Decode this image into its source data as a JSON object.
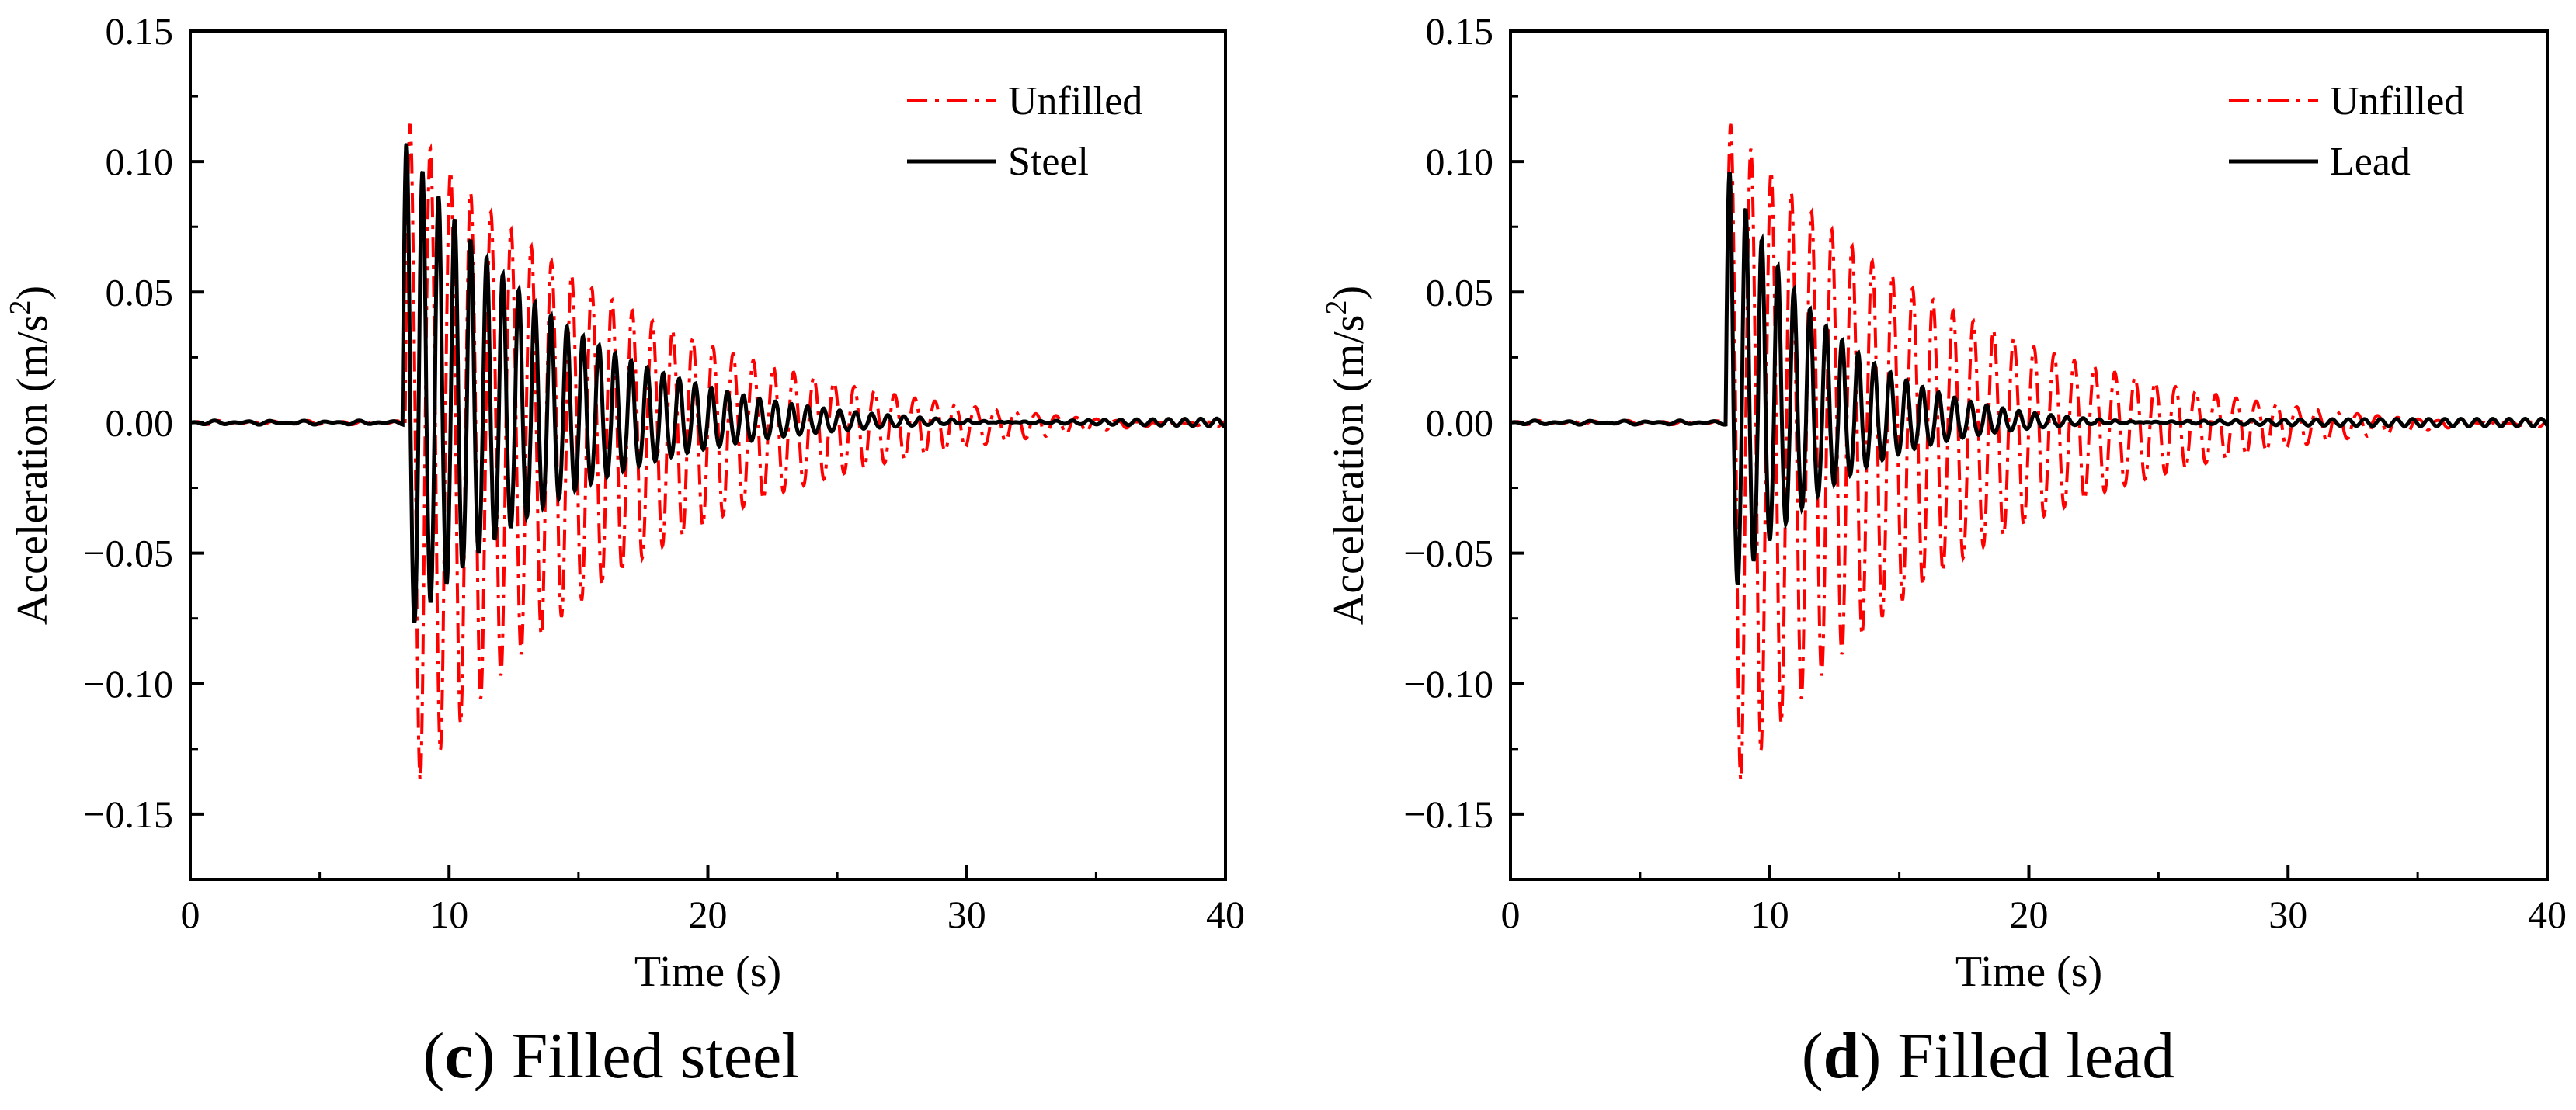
{
  "charts": [
    {
      "id": "c",
      "caption": {
        "letter": "c",
        "open": "(",
        "close": ")",
        "text": " Filled steel"
      },
      "xlabel": "Time (s)",
      "ylabel": "Acceleration (m/s",
      "ylabel_sup": "2",
      "ylabel_close": ")",
      "xticks": [
        "0",
        "10",
        "20",
        "30",
        "40"
      ],
      "yticks": [
        "0.15",
        "0.10",
        "0.05",
        "0.00",
        "−0.05",
        "−0.10",
        "−0.15"
      ],
      "legend": [
        "Unfilled",
        "Steel"
      ]
    },
    {
      "id": "d",
      "caption": {
        "letter": "d",
        "open": "(",
        "close": ")",
        "text": " Filled lead"
      },
      "xlabel": "Time (s)",
      "ylabel": "Acceleration (m/s",
      "ylabel_sup": "2",
      "ylabel_close": ")",
      "xticks": [
        "0",
        "10",
        "20",
        "30",
        "40"
      ],
      "yticks": [
        "0.15",
        "0.10",
        "0.05",
        "0.00",
        "−0.05",
        "−0.10",
        "−0.15"
      ],
      "legend": [
        "Unfilled",
        "Lead"
      ]
    }
  ],
  "chart_data": [
    {
      "type": "line",
      "xlim": [
        0,
        40
      ],
      "ylim": [
        -0.175,
        0.15
      ],
      "grid": false,
      "legend_position": "top-right",
      "series": [
        {
          "name": "Unfilled",
          "color": "#ff0000",
          "style": "dash-dot",
          "onset": 8.3,
          "period": 0.78,
          "peak_max": 0.117,
          "peak_min": -0.146,
          "decay_tau": 9.5,
          "tail_amplitude": 0.006
        },
        {
          "name": "Steel",
          "color": "#000000",
          "style": "solid",
          "onset": 8.2,
          "period": 0.62,
          "peak_max": 0.11,
          "peak_min": -0.083,
          "decay_tau": 6.0,
          "tail_amplitude": 0.002
        }
      ]
    },
    {
      "type": "line",
      "xlim": [
        0,
        40
      ],
      "ylim": [
        -0.175,
        0.15
      ],
      "grid": false,
      "legend_position": "top-right",
      "series": [
        {
          "name": "Unfilled",
          "color": "#ff0000",
          "style": "dash-dot",
          "onset": 8.3,
          "period": 0.78,
          "peak_max": 0.117,
          "peak_min": -0.146,
          "decay_tau": 9.5,
          "tail_amplitude": 0.006
        },
        {
          "name": "Lead",
          "color": "#000000",
          "style": "solid",
          "onset": 8.3,
          "period": 0.62,
          "peak_max": 0.1,
          "peak_min": -0.07,
          "decay_tau": 4.0,
          "tail_amplitude": 0.0015
        }
      ]
    }
  ]
}
